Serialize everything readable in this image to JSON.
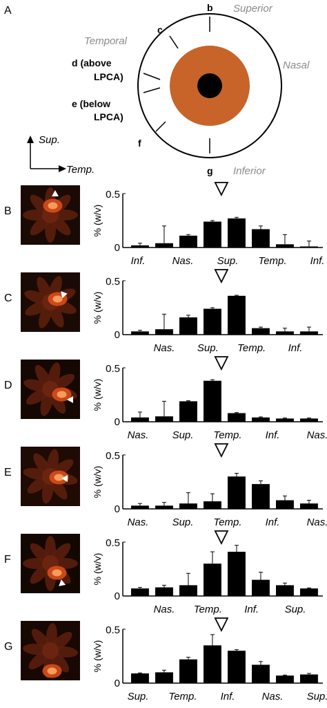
{
  "panelA": {
    "label": "A",
    "superior": "Superior",
    "inferior": "Inferior",
    "temporal": "Temporal",
    "nasal": "Nasal",
    "b": "b",
    "c": "c",
    "d1": "d (above",
    "d2": "LPCA)",
    "e1": "e (below",
    "e2": "LPCA)",
    "f": "f",
    "g": "g",
    "axis_sup": "Sup.",
    "axis_temp": "Temp."
  },
  "ylabel": "% (w/v)",
  "ytick_top": "0.5",
  "ytick_bottom": "0",
  "chart_data": [
    {
      "type": "bar",
      "panel": "B",
      "ylim": [
        0,
        0.5
      ],
      "values": [
        0.02,
        0.04,
        0.11,
        0.24,
        0.27,
        0.17,
        0.03,
        0.01
      ],
      "errors": [
        0.02,
        0.16,
        0.01,
        0.01,
        0.01,
        0.03,
        0.09,
        0.05
      ],
      "xticklabels": [
        "Inf.",
        "Nas.",
        "Sup.",
        "Temp.",
        "Inf."
      ],
      "marker_after_bar": 3.5
    },
    {
      "type": "bar",
      "panel": "C",
      "ylim": [
        0,
        0.5
      ],
      "values": [
        0.03,
        0.05,
        0.16,
        0.24,
        0.36,
        0.06,
        0.03,
        0.03
      ],
      "errors": [
        0.01,
        0.14,
        0.02,
        0.01,
        0.005,
        0.01,
        0.03,
        0.04
      ],
      "xticklabels": [
        "Nas.",
        "Sup.",
        "Temp.",
        "Inf."
      ],
      "marker_after_bar": 3.5
    },
    {
      "type": "bar",
      "panel": "D",
      "ylim": [
        0,
        0.5
      ],
      "values": [
        0.04,
        0.05,
        0.19,
        0.38,
        0.08,
        0.04,
        0.03,
        0.03
      ],
      "errors": [
        0.05,
        0.14,
        0.005,
        0.01,
        0.005,
        0.005,
        0.005,
        0.005
      ],
      "xticklabels": [
        "Nas.",
        "Sup.",
        "Temp.",
        "Inf.",
        "Nas."
      ],
      "marker_after_bar": 3.5
    },
    {
      "type": "bar",
      "panel": "E",
      "ylim": [
        0,
        0.5
      ],
      "values": [
        0.03,
        0.03,
        0.05,
        0.07,
        0.3,
        0.23,
        0.08,
        0.05
      ],
      "errors": [
        0.02,
        0.03,
        0.1,
        0.07,
        0.03,
        0.03,
        0.04,
        0.03
      ],
      "xticklabels": [
        "Nas.",
        "Sup.",
        "Temp.",
        "Inf.",
        "Nas."
      ],
      "marker_after_bar": 3.5
    },
    {
      "type": "bar",
      "panel": "F",
      "ylim": [
        0,
        0.5
      ],
      "values": [
        0.07,
        0.08,
        0.1,
        0.3,
        0.41,
        0.15,
        0.1,
        0.07
      ],
      "errors": [
        0.01,
        0.02,
        0.11,
        0.11,
        0.06,
        0.07,
        0.02,
        0.005
      ],
      "xticklabels": [
        "Nas.",
        "Temp.",
        "Inf.",
        "Sup."
      ],
      "marker_after_bar": 3.5
    },
    {
      "type": "bar",
      "panel": "G",
      "ylim": [
        0,
        0.5
      ],
      "values": [
        0.09,
        0.1,
        0.22,
        0.35,
        0.3,
        0.17,
        0.07,
        0.08
      ],
      "errors": [
        0.005,
        0.02,
        0.02,
        0.1,
        0.01,
        0.03,
        0.005,
        0.01
      ],
      "xticklabels": [
        "Sup.",
        "Temp.",
        "Inf.",
        "Nas.",
        "Sup."
      ],
      "marker_after_bar": 3.5
    }
  ],
  "colors": {
    "bar": "#000000",
    "iris": "#c8642a",
    "gray_text": "#8a8a8a",
    "flower": "#e0501a"
  }
}
